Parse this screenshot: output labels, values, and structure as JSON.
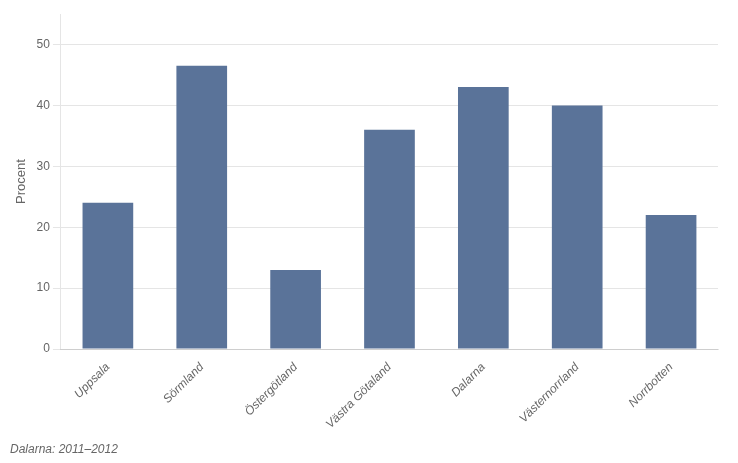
{
  "chart_data": {
    "type": "bar",
    "categories": [
      "Uppsala",
      "Sörmland",
      "Östergötland",
      "Västra Götaland",
      "Dalarna",
      "Västernorrland",
      "Norrbotten"
    ],
    "values": [
      24,
      46.5,
      13,
      36,
      43,
      40,
      22
    ],
    "color": "#5a7399",
    "ylabel": "Procent",
    "annotations": [
      "Dalarna: 2011–2012"
    ],
    "ylim": [
      0,
      55
    ],
    "yticks": [
      0,
      10,
      20,
      30,
      40,
      50
    ],
    "grid": true
  }
}
